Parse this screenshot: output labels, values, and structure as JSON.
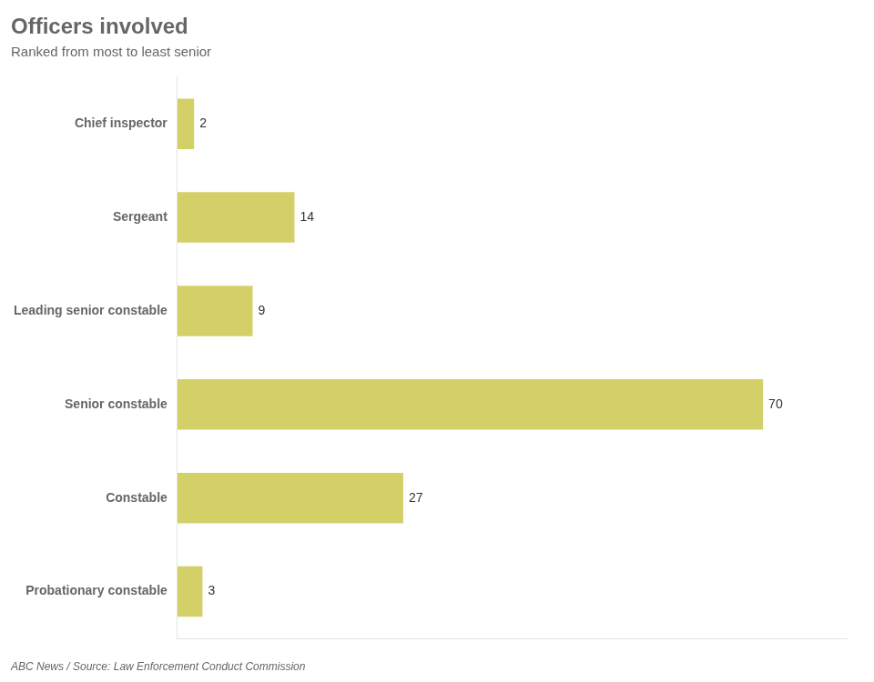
{
  "chart_data": {
    "type": "bar",
    "orientation": "horizontal",
    "title": "Officers involved",
    "subtitle": "Ranked from most to least senior",
    "footer": "ABC News / Source: Law Enforcement Conduct Commission",
    "categories": [
      "Chief inspector",
      "Sergeant",
      "Leading senior constable",
      "Senior constable",
      "Constable",
      "Probationary constable"
    ],
    "values": [
      2,
      14,
      9,
      70,
      27,
      3
    ],
    "color": "#d4d068",
    "xlim": [
      0,
      80
    ],
    "grid": false,
    "data_labels": true,
    "tick_labels": "y"
  }
}
